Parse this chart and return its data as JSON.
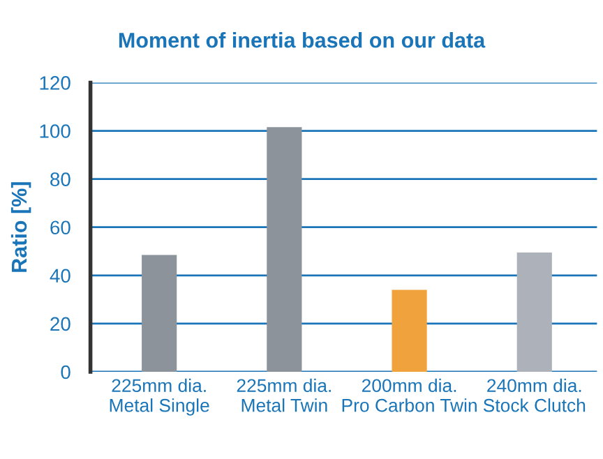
{
  "chart_data": {
    "type": "bar",
    "title": "Moment of inertia based on our data",
    "ylabel": "Ratio [%]",
    "categories": [
      "225mm dia.\nMetal Single",
      "225mm dia.\nMetal Twin",
      "200mm dia.\nPro Carbon Twin",
      "240mm dia.\nStock Clutch"
    ],
    "values": [
      48.5,
      101.5,
      34,
      49.5
    ],
    "colors": [
      "#8c939b",
      "#8c939b",
      "#f0a33c",
      "#adb2ba"
    ],
    "ylim": [
      0,
      120
    ],
    "yticks": [
      0,
      20,
      40,
      60,
      80,
      100,
      120
    ],
    "grid": "y",
    "legend": false
  }
}
